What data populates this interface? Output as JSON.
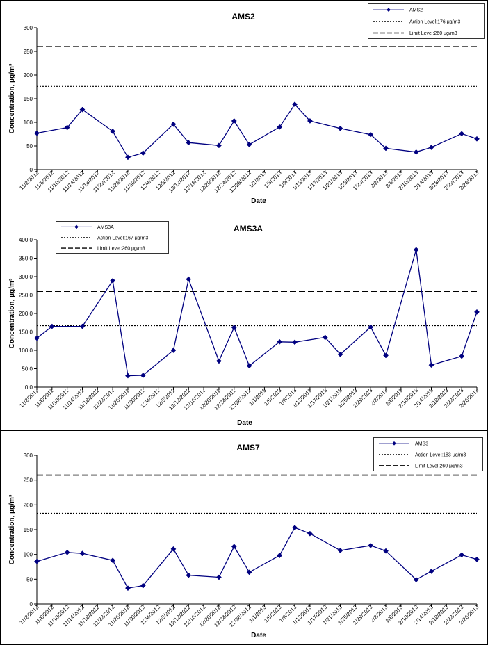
{
  "chart_data": [
    {
      "type": "line",
      "title": "AMS2",
      "xlabel": "Date",
      "ylabel": "Concentration, μg/m³",
      "ylim": [
        0,
        300
      ],
      "y_ticks": [
        "0",
        "50",
        "100",
        "150",
        "200",
        "250",
        "300"
      ],
      "categories": [
        "11/2/2012",
        "11/6/2012",
        "11/10/2012",
        "11/14/2012",
        "11/18/2012",
        "11/22/2012",
        "11/26/2012",
        "11/30/2012",
        "12/4/2012",
        "12/8/2012",
        "12/12/2012",
        "12/16/2012",
        "12/20/2012",
        "12/24/2012",
        "12/28/2012",
        "1/1/2013",
        "1/5/2013",
        "1/9/2013",
        "1/13/2013",
        "1/17/2013",
        "1/21/2013",
        "1/25/2013",
        "1/29/2013",
        "2/2/2013",
        "2/6/2013",
        "2/10/2013",
        "2/14/2013",
        "2/18/2013",
        "2/22/2013",
        "2/26/2013"
      ],
      "series": [
        {
          "name": "AMS2",
          "color": "#000080",
          "marker": "diamond",
          "points": [
            {
              "x": "11/2/2012",
              "y": 77
            },
            {
              "x": "11/10/2012",
              "y": 89
            },
            {
              "x": "11/14/2012",
              "y": 127
            },
            {
              "x": "11/22/2012",
              "y": 81
            },
            {
              "x": "11/26/2012",
              "y": 26
            },
            {
              "x": "11/30/2012",
              "y": 35
            },
            {
              "x": "12/8/2012",
              "y": 96
            },
            {
              "x": "12/12/2012",
              "y": 57
            },
            {
              "x": "12/20/2012",
              "y": 51
            },
            {
              "x": "12/24/2012",
              "y": 103
            },
            {
              "x": "12/28/2012",
              "y": 53
            },
            {
              "x": "1/5/2013",
              "y": 90
            },
            {
              "x": "1/9/2013",
              "y": 138
            },
            {
              "x": "1/13/2013",
              "y": 103
            },
            {
              "x": "1/21/2013",
              "y": 87
            },
            {
              "x": "1/29/2013",
              "y": 74
            },
            {
              "x": "2/2/2013",
              "y": 45
            },
            {
              "x": "2/10/2013",
              "y": 37
            },
            {
              "x": "2/14/2013",
              "y": 47
            },
            {
              "x": "2/22/2013",
              "y": 76
            },
            {
              "x": "2/26/2013",
              "y": 65
            }
          ]
        }
      ],
      "reference_lines": [
        {
          "name": "Action Level:176 μg/m3",
          "value": 176,
          "style": "dotted"
        },
        {
          "name": "Limit Level:260 μg/m3",
          "value": 260,
          "style": "dashed"
        }
      ],
      "legend_position": "top-right",
      "grid": false
    },
    {
      "type": "line",
      "title": "AMS3A",
      "xlabel": "Date",
      "ylabel": "Concentration, μg/m³",
      "ylim": [
        0,
        400
      ],
      "y_ticks": [
        "0.0",
        "50.0",
        "100.0",
        "150.0",
        "200.0",
        "250.0",
        "300.0",
        "350.0",
        "400.0"
      ],
      "categories": [
        "11/2/2012",
        "11/6/2012",
        "11/10/2012",
        "11/14/2012",
        "11/18/2012",
        "11/22/2012",
        "11/26/2012",
        "11/30/2012",
        "12/4/2012",
        "12/8/2012",
        "12/12/2012",
        "12/16/2012",
        "12/20/2012",
        "12/24/2012",
        "12/28/2012",
        "1/1/2013",
        "1/5/2013",
        "1/9/2013",
        "1/13/2013",
        "1/17/2013",
        "1/21/2013",
        "1/25/2013",
        "1/29/2013",
        "2/2/2013",
        "2/6/2013",
        "2/10/2013",
        "2/14/2013",
        "2/18/2013",
        "2/22/2013",
        "2/26/2013"
      ],
      "series": [
        {
          "name": "AMS3A",
          "color": "#000080",
          "marker": "diamond",
          "points": [
            {
              "x": "11/2/2012",
              "y": 133
            },
            {
              "x": "11/6/2012",
              "y": 165
            },
            {
              "x": "11/14/2012",
              "y": 165
            },
            {
              "x": "11/22/2012",
              "y": 289
            },
            {
              "x": "11/26/2012",
              "y": 31
            },
            {
              "x": "11/30/2012",
              "y": 32
            },
            {
              "x": "12/8/2012",
              "y": 100
            },
            {
              "x": "12/12/2012",
              "y": 293
            },
            {
              "x": "12/20/2012",
              "y": 71
            },
            {
              "x": "12/24/2012",
              "y": 162
            },
            {
              "x": "12/28/2012",
              "y": 58
            },
            {
              "x": "1/5/2013",
              "y": 123
            },
            {
              "x": "1/9/2013",
              "y": 122
            },
            {
              "x": "1/17/2013",
              "y": 135
            },
            {
              "x": "1/21/2013",
              "y": 89
            },
            {
              "x": "1/29/2013",
              "y": 163
            },
            {
              "x": "2/2/2013",
              "y": 86
            },
            {
              "x": "2/10/2013",
              "y": 373
            },
            {
              "x": "2/14/2013",
              "y": 60
            },
            {
              "x": "2/22/2013",
              "y": 84
            },
            {
              "x": "2/26/2013",
              "y": 204
            }
          ]
        }
      ],
      "reference_lines": [
        {
          "name": "Action Level:167 μg/m3",
          "value": 167,
          "style": "dotted"
        },
        {
          "name": "Limit Level:260 μg/m3",
          "value": 260,
          "style": "dashed"
        }
      ],
      "legend_position": "top-left",
      "grid": false
    },
    {
      "type": "line",
      "title": "AMS7",
      "xlabel": "Date",
      "ylabel": "Concentration, μg/m³",
      "ylim": [
        0,
        300
      ],
      "y_ticks": [
        "0",
        "50",
        "100",
        "150",
        "200",
        "250",
        "300"
      ],
      "categories": [
        "11/2/2012",
        "11/6/2012",
        "11/10/2012",
        "11/14/2012",
        "11/18/2012",
        "11/22/2012",
        "11/26/2012",
        "11/30/2012",
        "12/4/2012",
        "12/8/2012",
        "12/12/2012",
        "12/16/2012",
        "12/20/2012",
        "12/24/2012",
        "12/28/2012",
        "1/1/2013",
        "1/5/2013",
        "1/9/2013",
        "1/13/2013",
        "1/17/2013",
        "1/21/2013",
        "1/25/2013",
        "1/29/2013",
        "2/2/2013",
        "2/6/2013",
        "2/10/2013",
        "2/14/2013",
        "2/18/2013",
        "2/22/2013",
        "2/26/2013"
      ],
      "series": [
        {
          "name": "AMS3",
          "color": "#000080",
          "marker": "diamond",
          "points": [
            {
              "x": "11/2/2012",
              "y": 86
            },
            {
              "x": "11/10/2012",
              "y": 104
            },
            {
              "x": "11/14/2012",
              "y": 102
            },
            {
              "x": "11/22/2012",
              "y": 88
            },
            {
              "x": "11/26/2012",
              "y": 32
            },
            {
              "x": "11/30/2012",
              "y": 37
            },
            {
              "x": "12/8/2012",
              "y": 111
            },
            {
              "x": "12/12/2012",
              "y": 58
            },
            {
              "x": "12/20/2012",
              "y": 54
            },
            {
              "x": "12/24/2012",
              "y": 116
            },
            {
              "x": "12/28/2012",
              "y": 64
            },
            {
              "x": "1/5/2013",
              "y": 98
            },
            {
              "x": "1/9/2013",
              "y": 154
            },
            {
              "x": "1/13/2013",
              "y": 142
            },
            {
              "x": "1/21/2013",
              "y": 108
            },
            {
              "x": "1/29/2013",
              "y": 118
            },
            {
              "x": "2/2/2013",
              "y": 107
            },
            {
              "x": "2/10/2013",
              "y": 49
            },
            {
              "x": "2/14/2013",
              "y": 66
            },
            {
              "x": "2/22/2013",
              "y": 99
            },
            {
              "x": "2/26/2013",
              "y": 90
            }
          ]
        }
      ],
      "reference_lines": [
        {
          "name": "Action Level:183 μg/m3",
          "value": 183,
          "style": "dotted"
        },
        {
          "name": "Limit Level:260 μg/m3",
          "value": 260,
          "style": "dashed"
        }
      ],
      "legend_position": "top-right",
      "grid": false
    }
  ]
}
